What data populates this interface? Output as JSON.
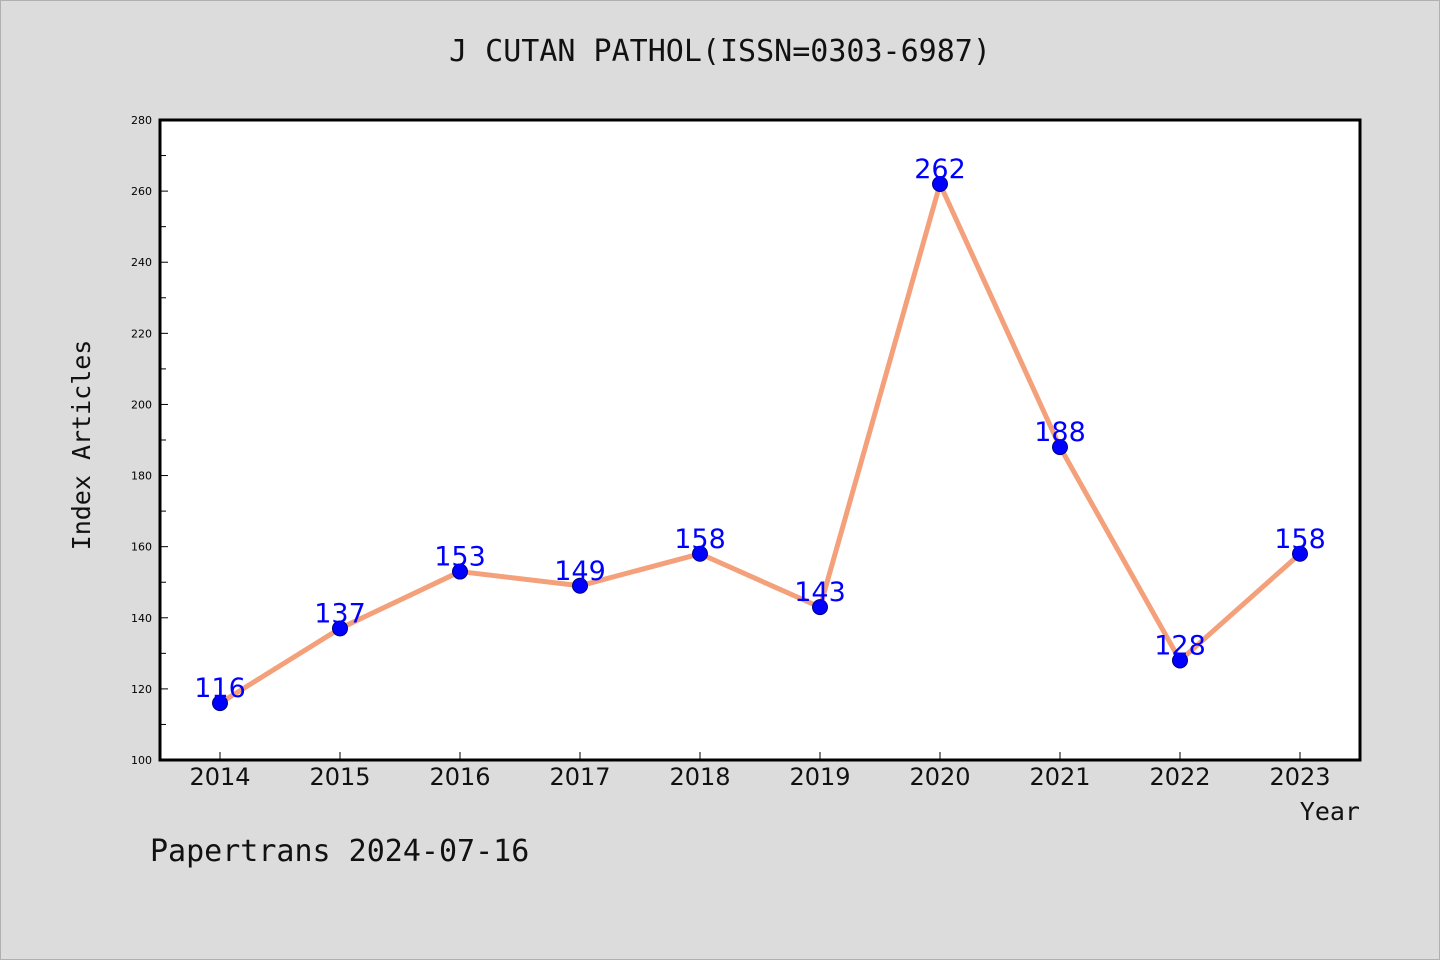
{
  "chart_data": {
    "type": "line",
    "title": "J CUTAN PATHOL(ISSN=0303-6987)",
    "xlabel": "Year",
    "ylabel": "Index Articles",
    "categories": [
      "2014",
      "2015",
      "2016",
      "2017",
      "2018",
      "2019",
      "2020",
      "2021",
      "2022",
      "2023"
    ],
    "series": [
      {
        "values": [
          116,
          137,
          153,
          149,
          158,
          143,
          262,
          188,
          128,
          158
        ]
      }
    ],
    "ylim": [
      100,
      280
    ],
    "yticks": [
      100,
      120,
      140,
      160,
      180,
      200,
      220,
      240,
      260,
      280
    ],
    "grid": false,
    "legend": "none",
    "colors": {
      "line": "#f4a07a",
      "marker": "#0000ff",
      "label": "#0000ff",
      "background": "#dcdcdc",
      "plot_background": "#ffffff"
    }
  },
  "footer": "Papertrans 2024-07-16"
}
